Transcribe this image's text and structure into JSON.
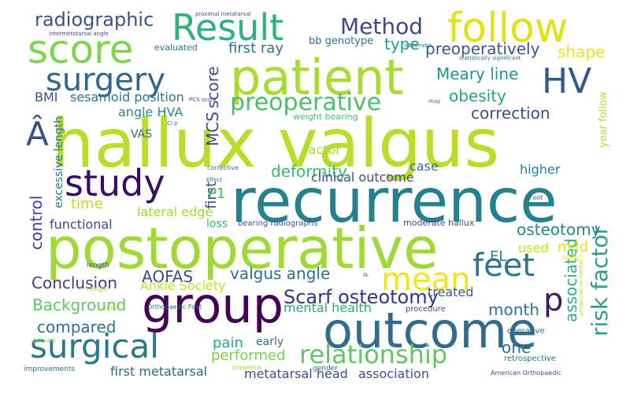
{
  "word_cloud": {
    "background": "#ffffff",
    "words": [
      {
        "text": "hallux valgus",
        "color": "#b9de2a"
      },
      {
        "text": "recurrence",
        "color": "#26818e"
      },
      {
        "text": "postoperative",
        "color": "#9fd938"
      },
      {
        "text": "patient",
        "color": "#a8db34"
      },
      {
        "text": "outcome",
        "color": "#2f6c8e"
      },
      {
        "text": "follow",
        "color": "#dfe318"
      },
      {
        "text": "group",
        "color": "#440256"
      },
      {
        "text": "Result",
        "color": "#2db27d"
      },
      {
        "text": "score",
        "color": "#7fd34e"
      },
      {
        "text": "study",
        "color": "#3a0d62"
      },
      {
        "text": "surgery",
        "color": "#31678e"
      },
      {
        "text": "surgical",
        "color": "#2a788e"
      },
      {
        "text": "HV",
        "color": "#36598b"
      },
      {
        "text": "feet",
        "color": "#2b748e"
      },
      {
        "text": "mean",
        "color": "#f1e51d"
      },
      {
        "text": "p",
        "color": "#3a1d5f"
      },
      {
        "text": "Â",
        "color": "#3b5088"
      },
      {
        "text": "relationship",
        "color": "#5ec962"
      },
      {
        "text": "preoperative",
        "color": "#4bbd6d"
      },
      {
        "text": "Method",
        "color": "#3f4788"
      },
      {
        "text": "radiographic",
        "color": "#3b518b"
      },
      {
        "text": "risk factor",
        "color": "#2f9c8a"
      },
      {
        "text": "Scarf osteotomy",
        "color": "#30368a"
      },
      {
        "text": "preoperatively",
        "color": "#3a548c"
      },
      {
        "text": "Background",
        "color": "#5bc863"
      },
      {
        "text": "deformity",
        "color": "#3aba76"
      },
      {
        "text": "osteotomy",
        "color": "#24878e"
      },
      {
        "text": "associated",
        "color": "#2bb07f"
      },
      {
        "text": "AOFAS",
        "color": "#3e4a89"
      },
      {
        "text": "valgus angle",
        "color": "#2e6e8e"
      },
      {
        "text": "Meary line",
        "color": "#1f968b"
      },
      {
        "text": "control",
        "color": "#433e85"
      },
      {
        "text": "score",
        "color": "#3e4c8a"
      },
      {
        "text": "MCS",
        "color": "#3e4989"
      },
      {
        "text": "shape",
        "color": "#ece51b"
      },
      {
        "text": "obesity",
        "color": "#20a386"
      },
      {
        "text": "correction",
        "color": "#3c4f8a"
      },
      {
        "text": "compared",
        "color": "#2c738e"
      },
      {
        "text": "Conclusion",
        "color": "#443a83"
      },
      {
        "text": "month",
        "color": "#2c728e"
      },
      {
        "text": "one",
        "color": "#2e6e8e"
      },
      {
        "text": "type",
        "color": "#1f9e89"
      },
      {
        "text": "first ray",
        "color": "#2c728e"
      },
      {
        "text": "pain",
        "color": "#22a884"
      },
      {
        "text": "time",
        "color": "#b5de2b"
      },
      {
        "text": "EL",
        "color": "#297a8e"
      },
      {
        "text": "mild",
        "color": "#dde318"
      },
      {
        "text": "performed",
        "color": "#7ad151"
      },
      {
        "text": "functional",
        "color": "#3e4989"
      },
      {
        "text": "first",
        "color": "#3e4a89"
      },
      {
        "text": "P1",
        "color": "#42be71"
      },
      {
        "text": "excessive length",
        "color": "#2a788e"
      },
      {
        "text": "angle HVA",
        "color": "#23898e"
      },
      {
        "text": "sesamoid position",
        "color": "#2c738e"
      },
      {
        "text": "BMI",
        "color": "#3b528b"
      },
      {
        "text": "clinical outcome",
        "color": "#3e4a89"
      },
      {
        "text": "case",
        "color": "#2d708e"
      },
      {
        "text": "higher",
        "color": "#26828e"
      },
      {
        "text": "factor",
        "color": "#a0da39"
      },
      {
        "text": "lateral edge",
        "color": "#9fda3a"
      },
      {
        "text": "Ankle Society",
        "color": "#c2df23"
      },
      {
        "text": "mental health",
        "color": "#25ab82"
      },
      {
        "text": "treated",
        "color": "#355e8d"
      },
      {
        "text": "used",
        "color": "#c2df23"
      },
      {
        "text": "first metatarsal",
        "color": "#31668e"
      },
      {
        "text": "metatarsal head",
        "color": "#3d4d8a"
      },
      {
        "text": "association",
        "color": "#3c4f8a"
      },
      {
        "text": "early",
        "color": "#2d718e"
      },
      {
        "text": "VAS",
        "color": "#2e6e8e"
      },
      {
        "text": "year follow",
        "color": "#b5de2b"
      },
      {
        "text": "loss",
        "color": "#35b779"
      },
      {
        "text": "bb genotype",
        "color": "#2c738e"
      },
      {
        "text": "evaluated",
        "color": "#2a768e"
      },
      {
        "text": "weight bearing",
        "color": "#4ac16d"
      },
      {
        "text": "moderate hallux",
        "color": "#3e4c8a"
      },
      {
        "text": "bearing radiographs",
        "color": "#3b528b"
      },
      {
        "text": "procedure",
        "color": "#3e4a89"
      },
      {
        "text": "operative",
        "color": "#2e6f8e"
      },
      {
        "text": "retrospective",
        "color": "#2c728e"
      },
      {
        "text": "scale",
        "color": "#fde725"
      },
      {
        "text": "length",
        "color": "#38588c"
      },
      {
        "text": "range",
        "color": "#b2dd2d"
      },
      {
        "text": "gender",
        "color": "#2c738e"
      },
      {
        "text": "improvements",
        "color": "#2f6c8e"
      },
      {
        "text": "Orthopaedic Foot",
        "color": "#2f6c8e"
      },
      {
        "text": "American Orthopaedic",
        "color": "#3b518b"
      },
      {
        "text": "RevEl",
        "color": "#c2df23"
      },
      {
        "text": "defined",
        "color": "#7fd34e"
      },
      {
        "text": "presence",
        "color": "#a2da37"
      },
      {
        "text": "Foot",
        "color": "#38588c"
      },
      {
        "text": "corrective",
        "color": "#2b758e"
      },
      {
        "text": "Effect",
        "color": "#2c728e"
      },
      {
        "text": "CI p",
        "color": "#2e6e8e"
      },
      {
        "text": "PCS score",
        "color": "#3b528b"
      },
      {
        "text": "may",
        "color": "#355e8d"
      },
      {
        "text": "statistically significant",
        "color": "#2c738e"
      },
      {
        "text": "odds ratio",
        "color": "#2c728e"
      },
      {
        "text": "intermetatarsal angle",
        "color": "#3e4989"
      },
      {
        "text": "proximal metatarsal",
        "color": "#3b528b"
      },
      {
        "text": "preoperative mental",
        "color": "#c2df23"
      },
      {
        "text": "p",
        "color": "#3e4a89"
      }
    ]
  }
}
